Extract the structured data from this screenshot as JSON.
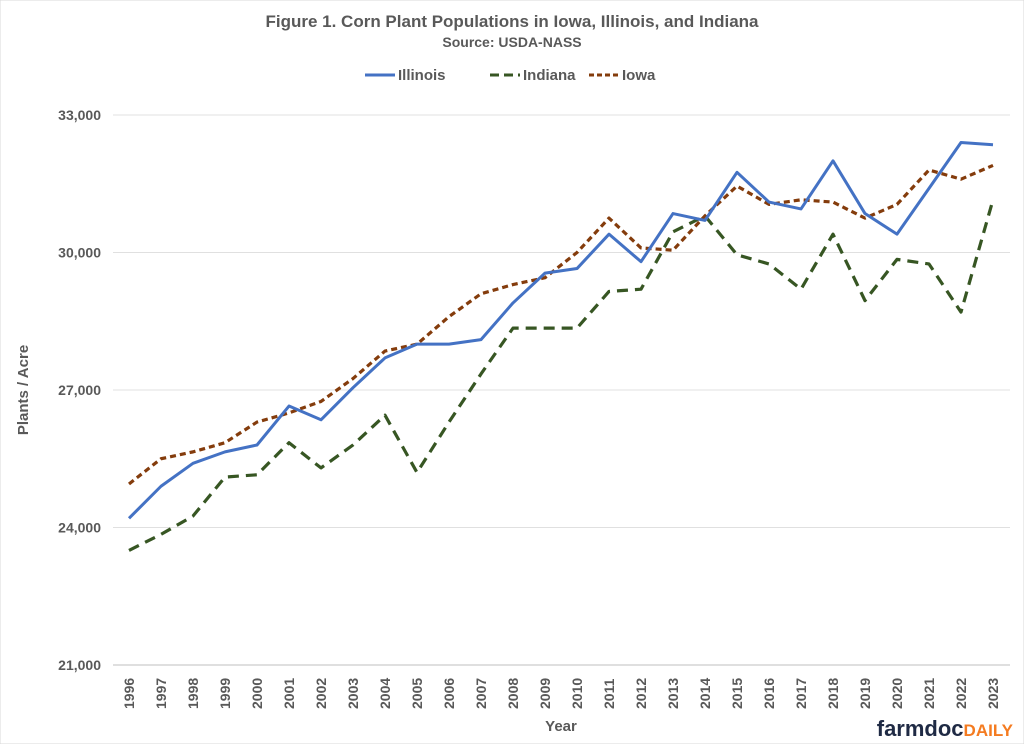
{
  "chart_data": {
    "type": "line",
    "title": "Figure 1.  Corn Plant Populations in Iowa, Illinois, and Indiana",
    "subtitle": "Source: USDA-NASS",
    "xlabel": "Year",
    "ylabel": "Plants / Acre",
    "ylim": [
      21000,
      33000
    ],
    "yticks": [
      21000,
      24000,
      27000,
      30000,
      33000
    ],
    "ytick_labels": [
      "21,000",
      "24,000",
      "27,000",
      "30,000",
      "33,000"
    ],
    "grid": "horizontal",
    "legend_position": "top",
    "x": [
      1996,
      1997,
      1998,
      1999,
      2000,
      2001,
      2002,
      2003,
      2004,
      2005,
      2006,
      2007,
      2008,
      2009,
      2010,
      2011,
      2012,
      2013,
      2014,
      2015,
      2016,
      2017,
      2018,
      2019,
      2020,
      2021,
      2022,
      2023
    ],
    "series": [
      {
        "name": "Illinois",
        "color": "#4472C4",
        "style": "solid",
        "values": [
          24200,
          24900,
          25400,
          25650,
          25800,
          26650,
          26350,
          27050,
          27700,
          28000,
          28000,
          28100,
          28900,
          29550,
          29650,
          30400,
          29800,
          30850,
          30700,
          31750,
          31100,
          30950,
          32000,
          30850,
          30400,
          31400,
          32400,
          32350
        ]
      },
      {
        "name": "Indiana",
        "color": "#375623",
        "style": "dashed",
        "values": [
          23500,
          23850,
          24250,
          25100,
          25150,
          25850,
          25300,
          25800,
          26450,
          25200,
          26300,
          27350,
          28350,
          28350,
          28350,
          29150,
          29200,
          30450,
          30800,
          29950,
          29750,
          29200,
          30400,
          28950,
          29850,
          29750,
          28700,
          31150
        ]
      },
      {
        "name": "Iowa",
        "color": "#843C0C",
        "style": "dotted",
        "values": [
          24950,
          25500,
          25650,
          25850,
          26300,
          26500,
          26750,
          27250,
          27850,
          28000,
          28600,
          29100,
          29300,
          29450,
          30000,
          30750,
          30100,
          30050,
          30800,
          31450,
          31050,
          31150,
          31100,
          30750,
          31050,
          31800,
          31600,
          31900
        ]
      }
    ]
  },
  "logo": {
    "part1": "farmdoc",
    "part2": "DAILY",
    "color1": "#1F2A44",
    "color2": "#F47B20"
  }
}
